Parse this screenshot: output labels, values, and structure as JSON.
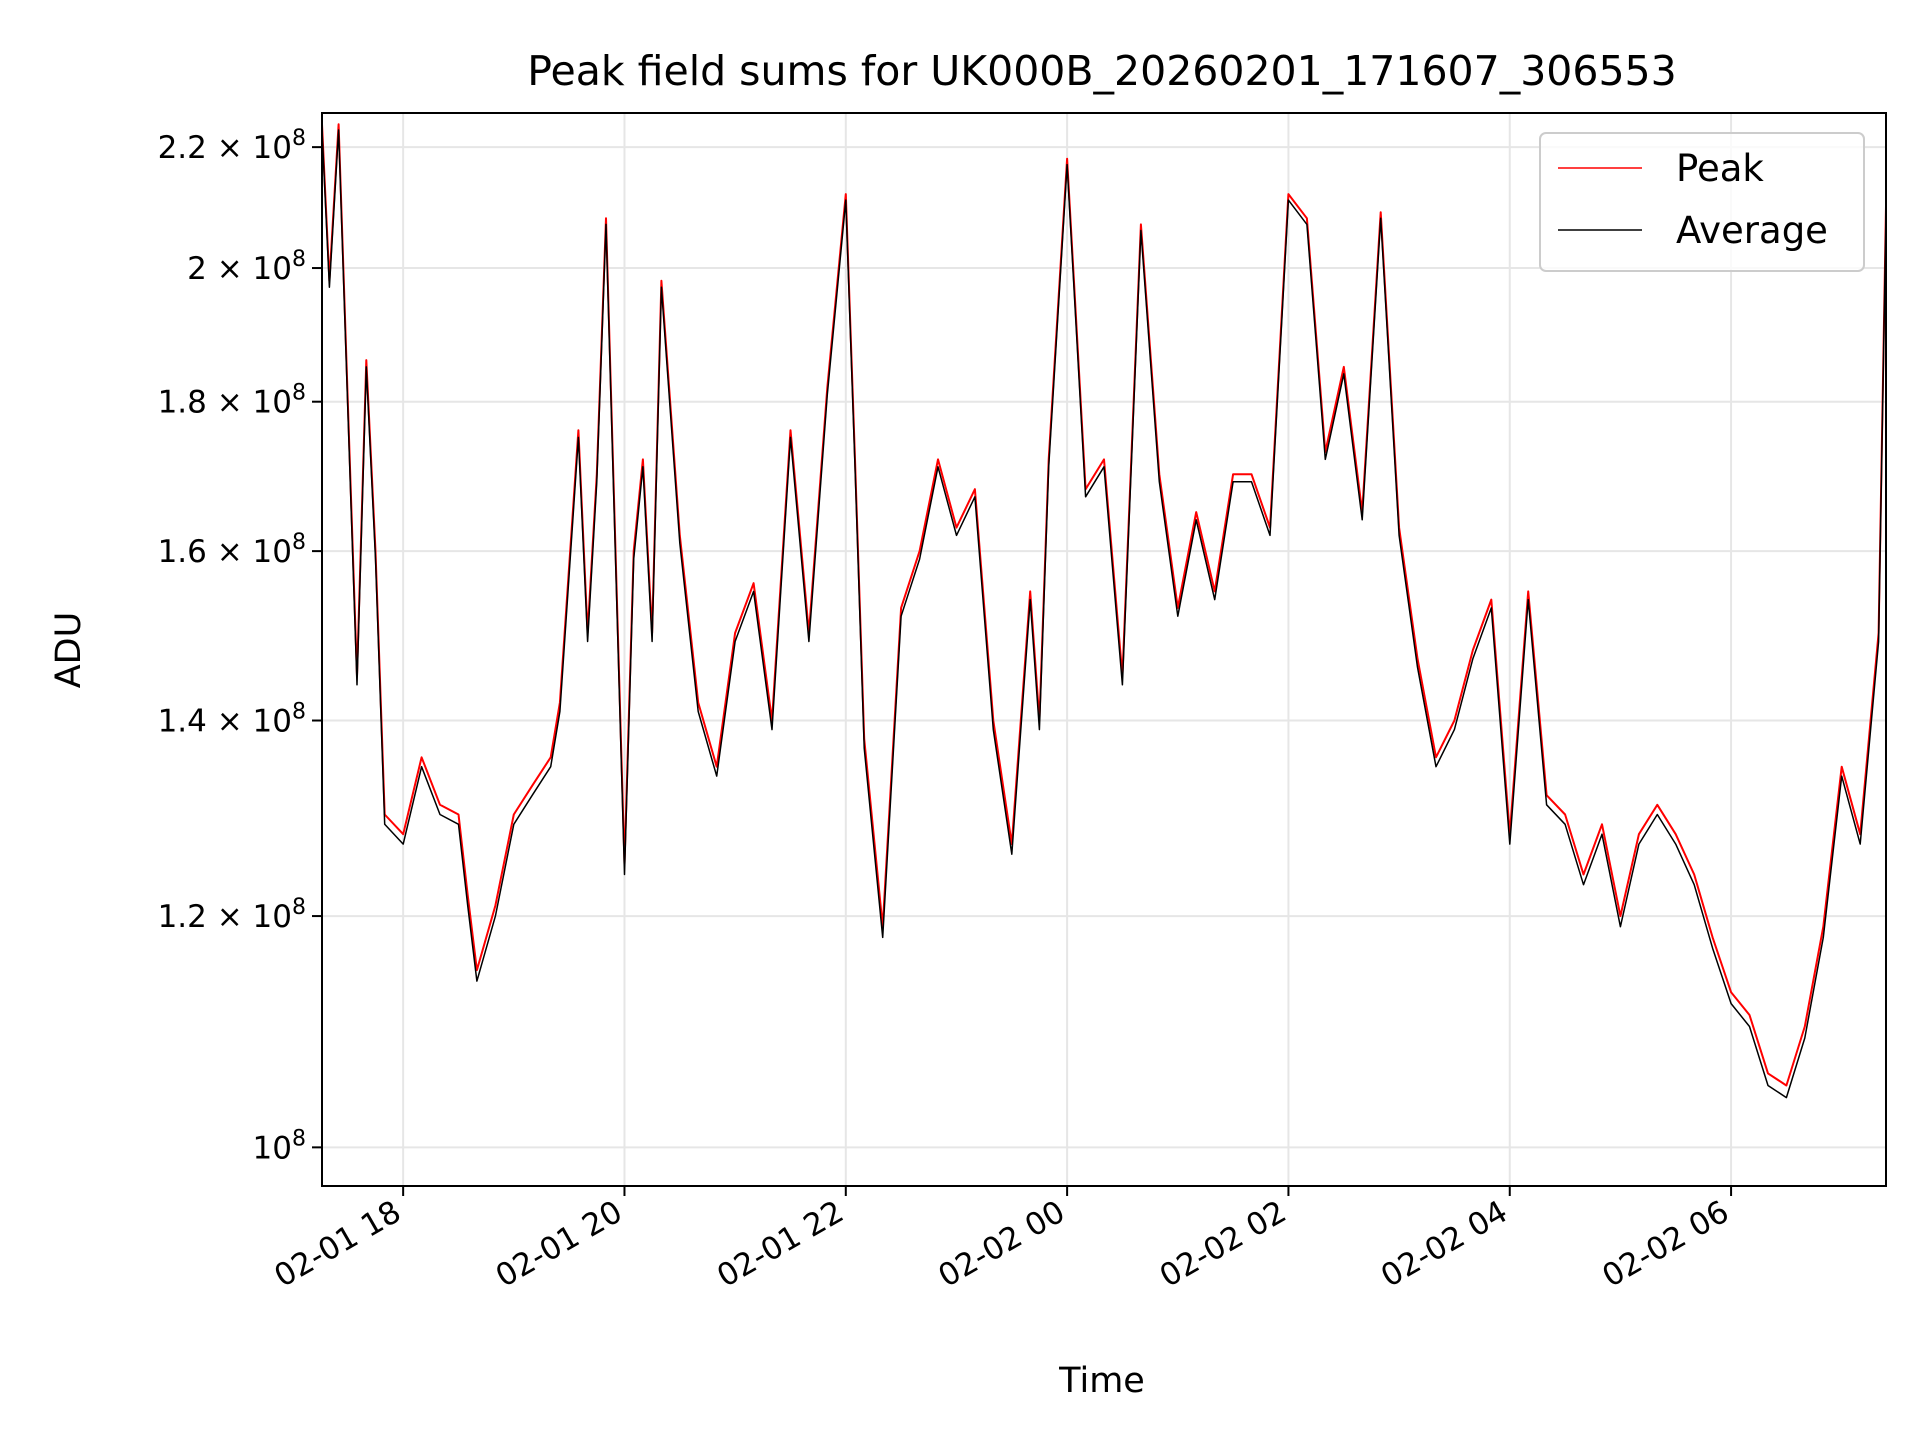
{
  "chart_data": {
    "type": "line",
    "title": "Peak field sums for UK000B_20260201_171607_306553",
    "xlabel": "Time",
    "ylabel": "ADU",
    "y_scale": "log",
    "ylim": [
      97000000,
      226000000
    ],
    "xlim": [
      "2026-02-01 17:16",
      "2026-02-02 07:24"
    ],
    "grid": true,
    "legend_position": "upper right",
    "x_ticks": [
      {
        "t": "2026-02-01 18:00",
        "label": "02-01 18"
      },
      {
        "t": "2026-02-01 20:00",
        "label": "02-01 20"
      },
      {
        "t": "2026-02-01 22:00",
        "label": "02-01 22"
      },
      {
        "t": "2026-02-02 00:00",
        "label": "02-02 00"
      },
      {
        "t": "2026-02-02 02:00",
        "label": "02-02 02"
      },
      {
        "t": "2026-02-02 04:00",
        "label": "02-02 04"
      },
      {
        "t": "2026-02-02 06:00",
        "label": "02-02 06"
      }
    ],
    "y_ticks": [
      {
        "value": 100000000,
        "base": "10",
        "exp": "8"
      },
      {
        "value": 120000000,
        "base": "1.2 × 10",
        "exp": "8"
      },
      {
        "value": 140000000,
        "base": "1.4 × 10",
        "exp": "8"
      },
      {
        "value": 160000000,
        "base": "1.6 × 10",
        "exp": "8"
      },
      {
        "value": 180000000,
        "base": "1.8 × 10",
        "exp": "8"
      },
      {
        "value": 200000000,
        "base": "2 × 10",
        "exp": "8"
      },
      {
        "value": 220000000,
        "base": "2.2 × 10",
        "exp": "8"
      }
    ],
    "series": [
      {
        "name": "Peak",
        "color": "#ff0000",
        "x": [
          "2026-02-01 17:16",
          "2026-02-01 17:20",
          "2026-02-01 17:25",
          "2026-02-01 17:30",
          "2026-02-01 17:35",
          "2026-02-01 17:40",
          "2026-02-01 17:45",
          "2026-02-01 17:50",
          "2026-02-01 18:00",
          "2026-02-01 18:10",
          "2026-02-01 18:20",
          "2026-02-01 18:30",
          "2026-02-01 18:35",
          "2026-02-01 18:40",
          "2026-02-01 18:50",
          "2026-02-01 19:00",
          "2026-02-01 19:10",
          "2026-02-01 19:20",
          "2026-02-01 19:25",
          "2026-02-01 19:30",
          "2026-02-01 19:35",
          "2026-02-01 19:40",
          "2026-02-01 19:45",
          "2026-02-01 19:50",
          "2026-02-01 20:00",
          "2026-02-01 20:05",
          "2026-02-01 20:10",
          "2026-02-01 20:15",
          "2026-02-01 20:20",
          "2026-02-01 20:30",
          "2026-02-01 20:40",
          "2026-02-01 20:50",
          "2026-02-01 21:00",
          "2026-02-01 21:10",
          "2026-02-01 21:20",
          "2026-02-01 21:30",
          "2026-02-01 21:40",
          "2026-02-01 21:50",
          "2026-02-01 22:00",
          "2026-02-01 22:05",
          "2026-02-01 22:10",
          "2026-02-01 22:20",
          "2026-02-01 22:30",
          "2026-02-01 22:40",
          "2026-02-01 22:50",
          "2026-02-01 23:00",
          "2026-02-01 23:10",
          "2026-02-01 23:20",
          "2026-02-01 23:30",
          "2026-02-01 23:40",
          "2026-02-01 23:45",
          "2026-02-01 23:50",
          "2026-02-02 00:00",
          "2026-02-02 00:10",
          "2026-02-02 00:20",
          "2026-02-02 00:30",
          "2026-02-02 00:40",
          "2026-02-02 00:50",
          "2026-02-02 01:00",
          "2026-02-02 01:10",
          "2026-02-02 01:20",
          "2026-02-02 01:30",
          "2026-02-02 01:40",
          "2026-02-02 01:50",
          "2026-02-02 02:00",
          "2026-02-02 02:10",
          "2026-02-02 02:20",
          "2026-02-02 02:30",
          "2026-02-02 02:40",
          "2026-02-02 02:50",
          "2026-02-02 03:00",
          "2026-02-02 03:10",
          "2026-02-02 03:20",
          "2026-02-02 03:30",
          "2026-02-02 03:40",
          "2026-02-02 03:50",
          "2026-02-02 04:00",
          "2026-02-02 04:10",
          "2026-02-02 04:20",
          "2026-02-02 04:30",
          "2026-02-02 04:40",
          "2026-02-02 04:50",
          "2026-02-02 05:00",
          "2026-02-02 05:10",
          "2026-02-02 05:20",
          "2026-02-02 05:30",
          "2026-02-02 05:40",
          "2026-02-02 05:50",
          "2026-02-02 06:00",
          "2026-02-02 06:10",
          "2026-02-02 06:20",
          "2026-02-02 06:30",
          "2026-02-02 06:40",
          "2026-02-02 06:50",
          "2026-02-02 07:00",
          "2026-02-02 07:10",
          "2026-02-02 07:20",
          "2026-02-02 07:24"
        ],
        "y": [
          224000000,
          198000000,
          224000000,
          180000000,
          145000000,
          186000000,
          160000000,
          130000000,
          128000000,
          136000000,
          131000000,
          130000000,
          122000000,
          115000000,
          121000000,
          130000000,
          133000000,
          136000000,
          142000000,
          158000000,
          176000000,
          150000000,
          170000000,
          208000000,
          125000000,
          160000000,
          172000000,
          150000000,
          198000000,
          162000000,
          142000000,
          135000000,
          150000000,
          156000000,
          140000000,
          176000000,
          150000000,
          182000000,
          212000000,
          172000000,
          138000000,
          119000000,
          153000000,
          160000000,
          172000000,
          163000000,
          168000000,
          140000000,
          127000000,
          155000000,
          140000000,
          172000000,
          218000000,
          168000000,
          172000000,
          145000000,
          207000000,
          170000000,
          153000000,
          165000000,
          155000000,
          170000000,
          170000000,
          163000000,
          212000000,
          208000000,
          173000000,
          185000000,
          165000000,
          209000000,
          163000000,
          147000000,
          136000000,
          140000000,
          148000000,
          154000000,
          128000000,
          155000000,
          132000000,
          130000000,
          124000000,
          129000000,
          120000000,
          128000000,
          131000000,
          128000000,
          124000000,
          118000000,
          113000000,
          111000000,
          106000000,
          105000000,
          110000000,
          119000000,
          135000000,
          128000000,
          150000000,
          210000000
        ]
      },
      {
        "name": "Average",
        "color": "#000000",
        "x": [
          "2026-02-01 17:16",
          "2026-02-01 17:20",
          "2026-02-01 17:25",
          "2026-02-01 17:30",
          "2026-02-01 17:35",
          "2026-02-01 17:40",
          "2026-02-01 17:45",
          "2026-02-01 17:50",
          "2026-02-01 18:00",
          "2026-02-01 18:10",
          "2026-02-01 18:20",
          "2026-02-01 18:30",
          "2026-02-01 18:35",
          "2026-02-01 18:40",
          "2026-02-01 18:50",
          "2026-02-01 19:00",
          "2026-02-01 19:10",
          "2026-02-01 19:20",
          "2026-02-01 19:25",
          "2026-02-01 19:30",
          "2026-02-01 19:35",
          "2026-02-01 19:40",
          "2026-02-01 19:45",
          "2026-02-01 19:50",
          "2026-02-01 20:00",
          "2026-02-01 20:05",
          "2026-02-01 20:10",
          "2026-02-01 20:15",
          "2026-02-01 20:20",
          "2026-02-01 20:30",
          "2026-02-01 20:40",
          "2026-02-01 20:50",
          "2026-02-01 21:00",
          "2026-02-01 21:10",
          "2026-02-01 21:20",
          "2026-02-01 21:30",
          "2026-02-01 21:40",
          "2026-02-01 21:50",
          "2026-02-01 22:00",
          "2026-02-01 22:05",
          "2026-02-01 22:10",
          "2026-02-01 22:20",
          "2026-02-01 22:30",
          "2026-02-01 22:40",
          "2026-02-01 22:50",
          "2026-02-01 23:00",
          "2026-02-01 23:10",
          "2026-02-01 23:20",
          "2026-02-01 23:30",
          "2026-02-01 23:40",
          "2026-02-01 23:45",
          "2026-02-01 23:50",
          "2026-02-02 00:00",
          "2026-02-02 00:10",
          "2026-02-02 00:20",
          "2026-02-02 00:30",
          "2026-02-02 00:40",
          "2026-02-02 00:50",
          "2026-02-02 01:00",
          "2026-02-02 01:10",
          "2026-02-02 01:20",
          "2026-02-02 01:30",
          "2026-02-02 01:40",
          "2026-02-02 01:50",
          "2026-02-02 02:00",
          "2026-02-02 02:10",
          "2026-02-02 02:20",
          "2026-02-02 02:30",
          "2026-02-02 02:40",
          "2026-02-02 02:50",
          "2026-02-02 03:00",
          "2026-02-02 03:10",
          "2026-02-02 03:20",
          "2026-02-02 03:30",
          "2026-02-02 03:40",
          "2026-02-02 03:50",
          "2026-02-02 04:00",
          "2026-02-02 04:10",
          "2026-02-02 04:20",
          "2026-02-02 04:30",
          "2026-02-02 04:40",
          "2026-02-02 04:50",
          "2026-02-02 05:00",
          "2026-02-02 05:10",
          "2026-02-02 05:20",
          "2026-02-02 05:30",
          "2026-02-02 05:40",
          "2026-02-02 05:50",
          "2026-02-02 06:00",
          "2026-02-02 06:10",
          "2026-02-02 06:20",
          "2026-02-02 06:30",
          "2026-02-02 06:40",
          "2026-02-02 06:50",
          "2026-02-02 07:00",
          "2026-02-02 07:10",
          "2026-02-02 07:20",
          "2026-02-02 07:24"
        ],
        "y": [
          223000000,
          197000000,
          223000000,
          179000000,
          144000000,
          185000000,
          159000000,
          129000000,
          127000000,
          135000000,
          130000000,
          129000000,
          121000000,
          114000000,
          120000000,
          129000000,
          132000000,
          135000000,
          141000000,
          157000000,
          175000000,
          149000000,
          169000000,
          207000000,
          124000000,
          159000000,
          171000000,
          149000000,
          197000000,
          161000000,
          141000000,
          134000000,
          149000000,
          155000000,
          139000000,
          175000000,
          149000000,
          181000000,
          211000000,
          171000000,
          137000000,
          118000000,
          152000000,
          159000000,
          171000000,
          162000000,
          167000000,
          139000000,
          126000000,
          154000000,
          139000000,
          171000000,
          217000000,
          167000000,
          171000000,
          144000000,
          206000000,
          169000000,
          152000000,
          164000000,
          154000000,
          169000000,
          169000000,
          162000000,
          211000000,
          207000000,
          172000000,
          184000000,
          164000000,
          208000000,
          162000000,
          146000000,
          135000000,
          139000000,
          147000000,
          153000000,
          127000000,
          154000000,
          131000000,
          129000000,
          123000000,
          128000000,
          119000000,
          127000000,
          130000000,
          127000000,
          123000000,
          117000000,
          112000000,
          110000000,
          105000000,
          104000000,
          109000000,
          118000000,
          134000000,
          127000000,
          149000000,
          209000000
        ]
      }
    ]
  }
}
